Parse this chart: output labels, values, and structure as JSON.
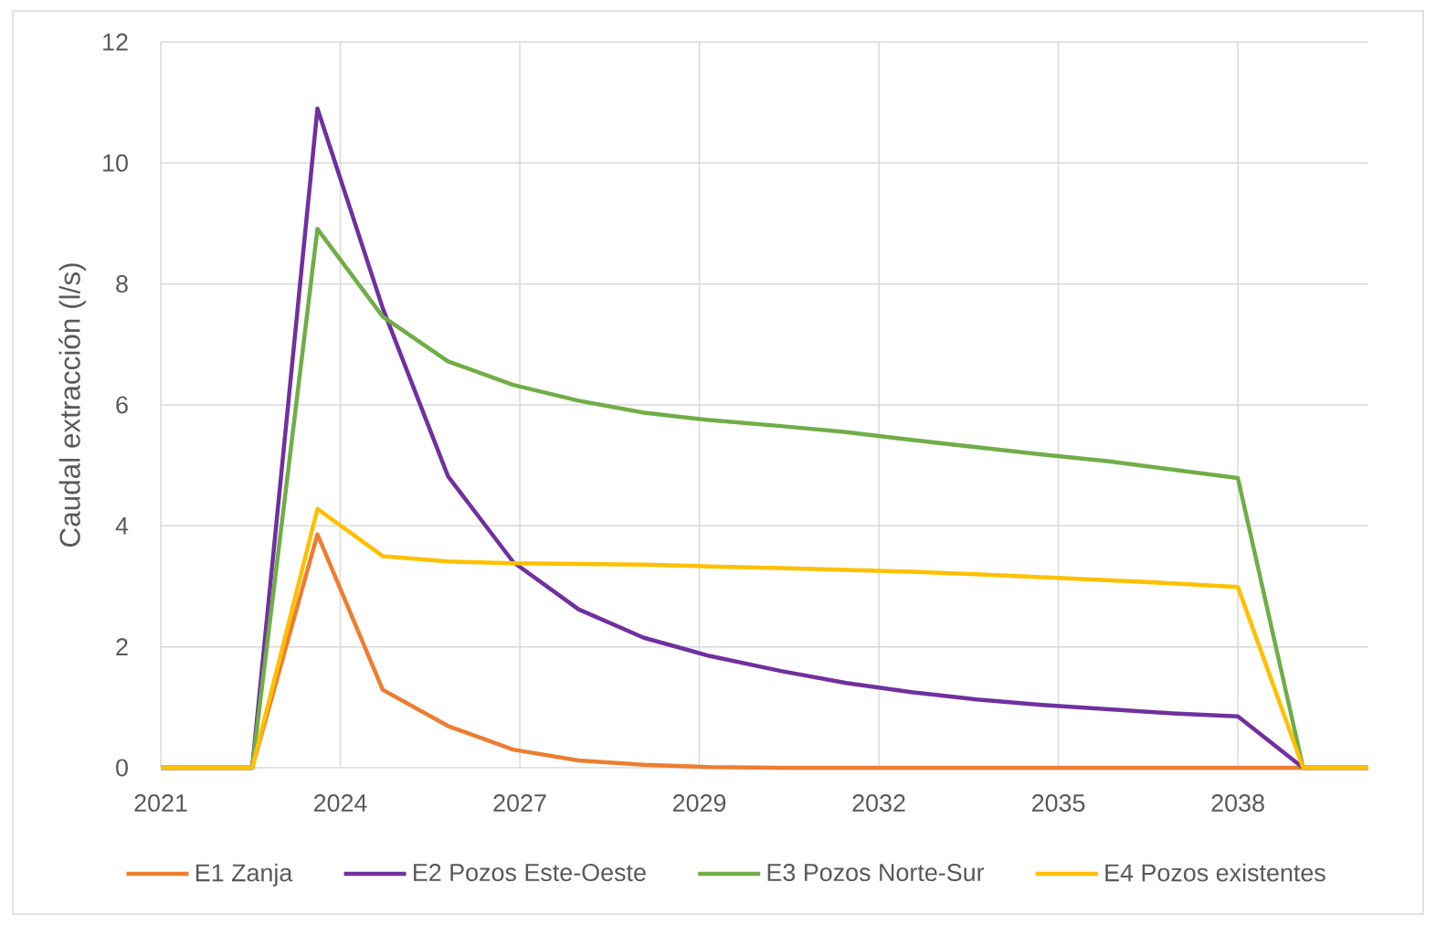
{
  "chart_data": {
    "type": "line",
    "ylabel": "Caudal extracción (l/s)",
    "x": [
      2021,
      2022.4,
      2023.4,
      2024.4,
      2025.4,
      2026.4,
      2027.4,
      2028.4,
      2029.4,
      2030.5,
      2031.5,
      2032.5,
      2033.5,
      2034.5,
      2035.5,
      2036.5,
      2037.5,
      2038.5,
      2039.5
    ],
    "series": [
      {
        "name": "E1 Zanja",
        "color": "#ED7D31",
        "values": [
          0,
          0,
          3.86,
          1.29,
          0.69,
          0.3,
          0.12,
          0.05,
          0.01,
          0,
          0,
          0,
          0,
          0,
          0,
          0,
          0,
          0,
          0
        ]
      },
      {
        "name": "E2 Pozos Este-Oeste",
        "color": "#7030A0",
        "values": [
          0,
          0,
          10.9,
          7.6,
          4.82,
          3.4,
          2.62,
          2.15,
          1.85,
          1.6,
          1.4,
          1.25,
          1.13,
          1.04,
          0.97,
          0.9,
          0.85,
          0,
          0
        ]
      },
      {
        "name": "E3 Pozos Norte-Sur",
        "color": "#70AD47",
        "values": [
          0,
          0,
          8.91,
          7.46,
          6.72,
          6.33,
          6.07,
          5.87,
          5.75,
          5.65,
          5.55,
          5.42,
          5.3,
          5.18,
          5.07,
          4.93,
          4.79,
          0,
          0
        ]
      },
      {
        "name": "E4 Pozos existentes",
        "color": "#FFC000",
        "values": [
          0,
          0,
          4.28,
          3.5,
          3.41,
          3.38,
          3.37,
          3.36,
          3.33,
          3.3,
          3.27,
          3.24,
          3.2,
          3.15,
          3.1,
          3.05,
          2.99,
          0,
          0
        ]
      }
    ],
    "xlim": [
      2021,
      2039.5
    ],
    "ylim": [
      0,
      12
    ],
    "xticks": [
      2021,
      {
        "value": 2023.75,
        "label": "2024"
      },
      {
        "value": 2026.5,
        "label": "2027"
      },
      {
        "value": 2029.25,
        "label": "2029"
      },
      {
        "value": 2032,
        "label": "2032"
      },
      {
        "value": 2034.75,
        "label": "2035"
      },
      {
        "value": 2037.5,
        "label": "2038"
      }
    ],
    "yticks": [
      0,
      2,
      4,
      6,
      8,
      10,
      12
    ],
    "grid": true,
    "legend": "bottom",
    "marker": "none",
    "line_style": "solid"
  }
}
